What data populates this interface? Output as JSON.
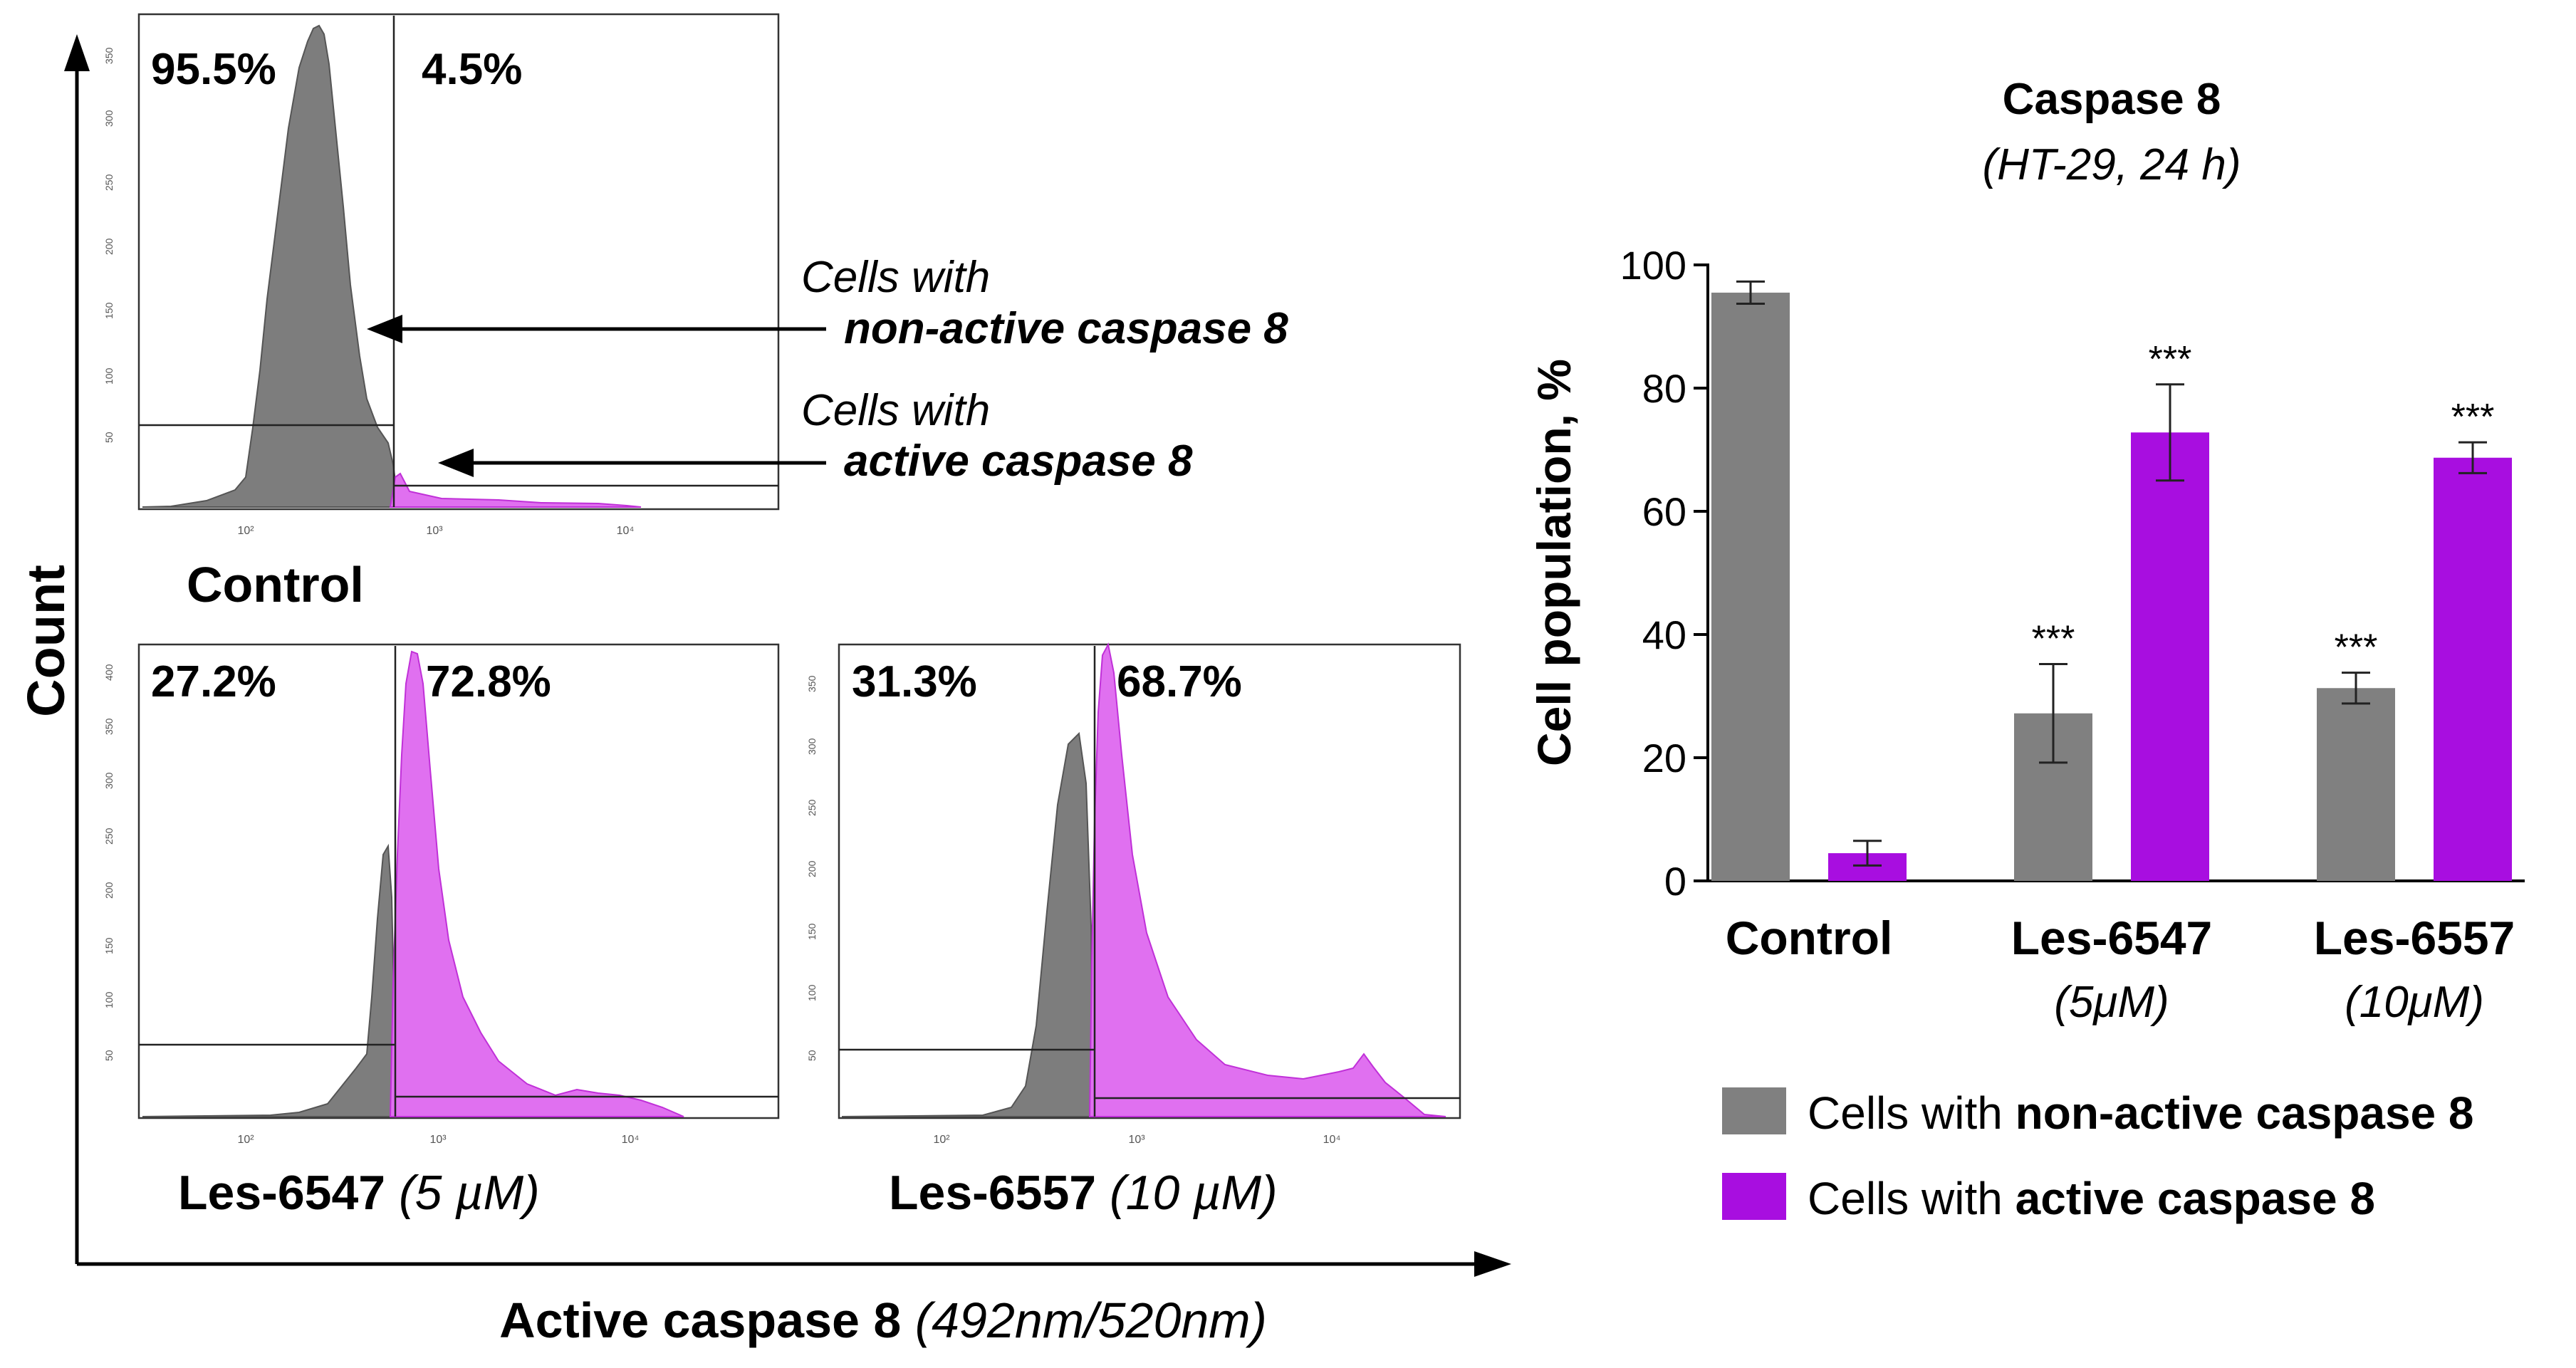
{
  "chart_data": [
    {
      "type": "histogram",
      "panel": "Control",
      "title": "Control",
      "xlabel": "Active caspase 8 (492nm/520nm)",
      "ylabel": "Count",
      "gates": [
        {
          "label": "95.5%",
          "value": 95.5
        },
        {
          "label": "4.5%",
          "value": 4.5
        }
      ],
      "y_ticks": [
        "50",
        "100",
        "150",
        "200",
        "250",
        "300",
        "350"
      ],
      "x_ticks": [
        "10²",
        "10³",
        "10⁴"
      ],
      "annotations": [
        {
          "line1": "Cells with",
          "line2": "non-active caspase 8"
        },
        {
          "line1": "Cells with",
          "line2": "active caspase 8"
        }
      ]
    },
    {
      "type": "histogram",
      "panel": "Les-6547",
      "title_main": "Les-6547",
      "title_conc": "(5 µM)",
      "gates": [
        {
          "label": "27.2%",
          "value": 27.2
        },
        {
          "label": "72.8%",
          "value": 72.8
        }
      ],
      "y_ticks": [
        "50",
        "100",
        "150",
        "200",
        "250",
        "300",
        "350",
        "400"
      ],
      "x_ticks": [
        "10²",
        "10³",
        "10⁴"
      ]
    },
    {
      "type": "histogram",
      "panel": "Les-6557",
      "title_main": "Les-6557",
      "title_conc": "(10 µM)",
      "gates": [
        {
          "label": "31.3%",
          "value": 31.3
        },
        {
          "label": "68.7%",
          "value": 68.7
        }
      ],
      "y_ticks": [
        "50",
        "100",
        "150",
        "200",
        "250",
        "300",
        "350"
      ],
      "x_ticks": [
        "10²",
        "10³",
        "10⁴"
      ]
    },
    {
      "type": "bar",
      "title": "Caspase 8",
      "subtitle": "(HT-29, 24 h)",
      "ylabel": "Cell population, %",
      "ylim": [
        0,
        100
      ],
      "yticks": [
        0,
        20,
        40,
        60,
        80,
        100
      ],
      "categories": [
        {
          "name": "Control",
          "conc": ""
        },
        {
          "name": "Les-6547",
          "conc": "(5μM)"
        },
        {
          "name": "Les-6557",
          "conc": "(10μM)"
        }
      ],
      "series": [
        {
          "name": "Cells with non-active caspase 8",
          "legend_prefix": "Cells with",
          "legend_bold": "non-active caspase 8",
          "color": "#808080",
          "values": [
            95.5,
            27.2,
            31.3
          ],
          "errors": [
            1.8,
            8.0,
            2.5
          ],
          "significance": [
            "",
            "***",
            "***"
          ]
        },
        {
          "name": "Cells with active caspase 8",
          "legend_prefix": "Cells with",
          "legend_bold": "active caspase 8",
          "color": "#a80ee0",
          "values": [
            4.5,
            72.8,
            68.7
          ],
          "errors": [
            2.0,
            7.8,
            2.5
          ],
          "significance": [
            "",
            "***",
            "***"
          ]
        }
      ]
    }
  ],
  "colors": {
    "grey_fill": "#7d7d7d",
    "magenta_fill": "#e070f0",
    "magenta_edge": "#c030d8",
    "bar_magenta": "#a80ee0",
    "bar_grey": "#808080"
  }
}
